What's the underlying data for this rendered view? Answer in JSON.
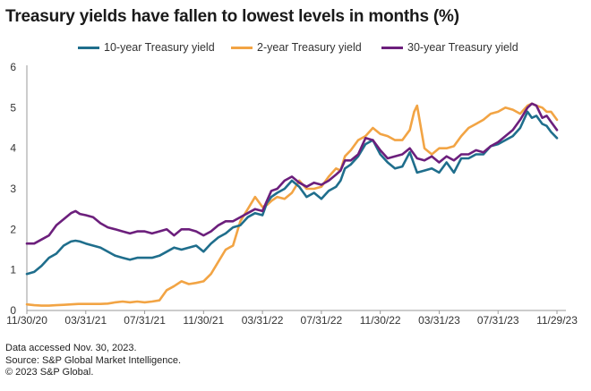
{
  "title": "Treasury yields have fallen to lowest levels in months (%)",
  "notes": [
    "Data accessed Nov. 30, 2023.",
    "Source: S&P Global Market Intelligence.",
    "© 2023 S&P Global."
  ],
  "chart_data": {
    "type": "line",
    "title": "Treasury yields have fallen to lowest levels in months (%)",
    "xlabel": "",
    "ylabel": "",
    "ylim": [
      0,
      6
    ],
    "xlim": [
      0,
      36
    ],
    "yticks": [
      "0",
      "1",
      "2",
      "3",
      "4",
      "5",
      "6"
    ],
    "xticks": [
      {
        "pos": 0,
        "label": "11/30/20"
      },
      {
        "pos": 4,
        "label": "03/31/21"
      },
      {
        "pos": 8,
        "label": "07/31/21"
      },
      {
        "pos": 12,
        "label": "11/30/21"
      },
      {
        "pos": 16,
        "label": "03/31/22"
      },
      {
        "pos": 20,
        "label": "07/31/22"
      },
      {
        "pos": 24,
        "label": "11/30/22"
      },
      {
        "pos": 28,
        "label": "03/31/23"
      },
      {
        "pos": 32,
        "label": "07/31/23"
      },
      {
        "pos": 36,
        "label": "11/29/23"
      }
    ],
    "grid": false,
    "legend": "top-center",
    "series": [
      {
        "name": "10-year Treasury yield",
        "color": "#1f6e8c",
        "x": [
          0,
          0.5,
          1,
          1.5,
          2,
          2.5,
          3,
          3.3,
          3.6,
          4,
          4.5,
          5,
          5.5,
          6,
          6.5,
          7,
          7.5,
          8,
          8.5,
          9,
          9.5,
          10,
          10.5,
          11,
          11.5,
          12,
          12.5,
          13,
          13.5,
          14,
          14.5,
          15,
          15.5,
          16,
          16.3,
          16.6,
          17,
          17.5,
          18,
          18.5,
          19,
          19.5,
          20,
          20.5,
          21,
          21.3,
          21.6,
          22,
          22.5,
          23,
          23.5,
          24,
          24.5,
          25,
          25.5,
          26,
          26.3,
          26.5,
          27,
          27.5,
          28,
          28.5,
          29,
          29.5,
          30,
          30.5,
          31,
          31.5,
          32,
          32.5,
          33,
          33.5,
          34,
          34.3,
          34.6,
          35,
          35.3,
          35.6,
          36
        ],
        "y": [
          0.9,
          0.95,
          1.1,
          1.3,
          1.4,
          1.6,
          1.7,
          1.72,
          1.7,
          1.65,
          1.6,
          1.55,
          1.45,
          1.35,
          1.3,
          1.25,
          1.3,
          1.3,
          1.3,
          1.35,
          1.45,
          1.55,
          1.5,
          1.55,
          1.6,
          1.45,
          1.65,
          1.8,
          1.9,
          2.05,
          2.1,
          2.3,
          2.4,
          2.35,
          2.65,
          2.8,
          2.9,
          3.0,
          3.2,
          3.05,
          2.8,
          2.9,
          2.75,
          2.95,
          3.05,
          3.2,
          3.5,
          3.6,
          3.8,
          4.1,
          4.2,
          3.85,
          3.65,
          3.5,
          3.55,
          3.9,
          3.6,
          3.4,
          3.45,
          3.5,
          3.4,
          3.65,
          3.4,
          3.75,
          3.75,
          3.85,
          3.85,
          4.05,
          4.1,
          4.2,
          4.3,
          4.5,
          4.9,
          4.75,
          4.8,
          4.6,
          4.55,
          4.4,
          4.25
        ]
      },
      {
        "name": "2-year Treasury yield",
        "color": "#f2a444",
        "x": [
          0,
          0.5,
          1,
          1.5,
          2,
          2.5,
          3,
          3.5,
          4,
          4.5,
          5,
          5.5,
          6,
          6.5,
          7,
          7.5,
          8,
          8.5,
          9,
          9.5,
          10,
          10.5,
          11,
          11.5,
          12,
          12.5,
          13,
          13.5,
          14,
          14.5,
          15,
          15.5,
          16,
          16.3,
          16.6,
          17,
          17.5,
          18,
          18.5,
          19,
          19.5,
          20,
          20.5,
          21,
          21.3,
          21.6,
          22,
          22.5,
          23,
          23.5,
          24,
          24.5,
          25,
          25.5,
          26,
          26.3,
          26.5,
          27,
          27.5,
          28,
          28.5,
          29,
          29.5,
          30,
          30.5,
          31,
          31.5,
          32,
          32.5,
          33,
          33.5,
          34,
          34.3,
          34.6,
          35,
          35.3,
          35.6,
          36
        ],
        "y": [
          0.15,
          0.13,
          0.12,
          0.12,
          0.13,
          0.14,
          0.15,
          0.16,
          0.16,
          0.16,
          0.16,
          0.17,
          0.2,
          0.22,
          0.2,
          0.22,
          0.2,
          0.22,
          0.25,
          0.5,
          0.6,
          0.72,
          0.65,
          0.68,
          0.72,
          0.9,
          1.2,
          1.5,
          1.6,
          2.2,
          2.5,
          2.8,
          2.55,
          2.6,
          2.7,
          2.8,
          2.75,
          2.9,
          3.2,
          3.0,
          3.0,
          3.05,
          3.3,
          3.5,
          3.45,
          3.8,
          3.95,
          4.2,
          4.3,
          4.5,
          4.35,
          4.3,
          4.2,
          4.2,
          4.45,
          4.9,
          5.05,
          4.0,
          3.85,
          4.0,
          4.0,
          4.05,
          4.3,
          4.5,
          4.6,
          4.7,
          4.85,
          4.9,
          5.0,
          4.95,
          4.85,
          5.05,
          5.1,
          5.05,
          5.0,
          4.9,
          4.9,
          4.7
        ]
      },
      {
        "name": "30-year Treasury yield",
        "color": "#6c1f7c",
        "x": [
          0,
          0.5,
          1,
          1.5,
          2,
          2.5,
          3,
          3.3,
          3.6,
          4,
          4.5,
          5,
          5.5,
          6,
          6.5,
          7,
          7.5,
          8,
          8.5,
          9,
          9.5,
          10,
          10.5,
          11,
          11.5,
          12,
          12.5,
          13,
          13.5,
          14,
          14.5,
          15,
          15.5,
          16,
          16.3,
          16.6,
          17,
          17.5,
          18,
          18.5,
          19,
          19.5,
          20,
          20.5,
          21,
          21.3,
          21.6,
          22,
          22.5,
          23,
          23.5,
          24,
          24.5,
          25,
          25.5,
          26,
          26.3,
          26.5,
          27,
          27.5,
          28,
          28.5,
          29,
          29.5,
          30,
          30.5,
          31,
          31.5,
          32,
          32.5,
          33,
          33.5,
          34,
          34.3,
          34.6,
          35,
          35.3,
          35.6,
          36
        ],
        "y": [
          1.65,
          1.65,
          1.75,
          1.85,
          2.1,
          2.25,
          2.4,
          2.45,
          2.38,
          2.35,
          2.3,
          2.15,
          2.05,
          2.0,
          1.95,
          1.9,
          1.95,
          1.95,
          1.9,
          1.95,
          2.0,
          1.85,
          2.0,
          2.0,
          1.95,
          1.85,
          1.95,
          2.1,
          2.2,
          2.2,
          2.3,
          2.4,
          2.5,
          2.45,
          2.7,
          2.95,
          3.0,
          3.2,
          3.3,
          3.15,
          3.05,
          3.15,
          3.1,
          3.2,
          3.35,
          3.45,
          3.7,
          3.7,
          3.85,
          4.25,
          4.2,
          3.95,
          3.75,
          3.8,
          3.85,
          4.0,
          3.85,
          3.75,
          3.7,
          3.8,
          3.65,
          3.8,
          3.7,
          3.85,
          3.85,
          3.95,
          3.9,
          4.05,
          4.15,
          4.3,
          4.45,
          4.7,
          5.0,
          5.1,
          5.05,
          4.75,
          4.8,
          4.65,
          4.45
        ]
      }
    ]
  }
}
